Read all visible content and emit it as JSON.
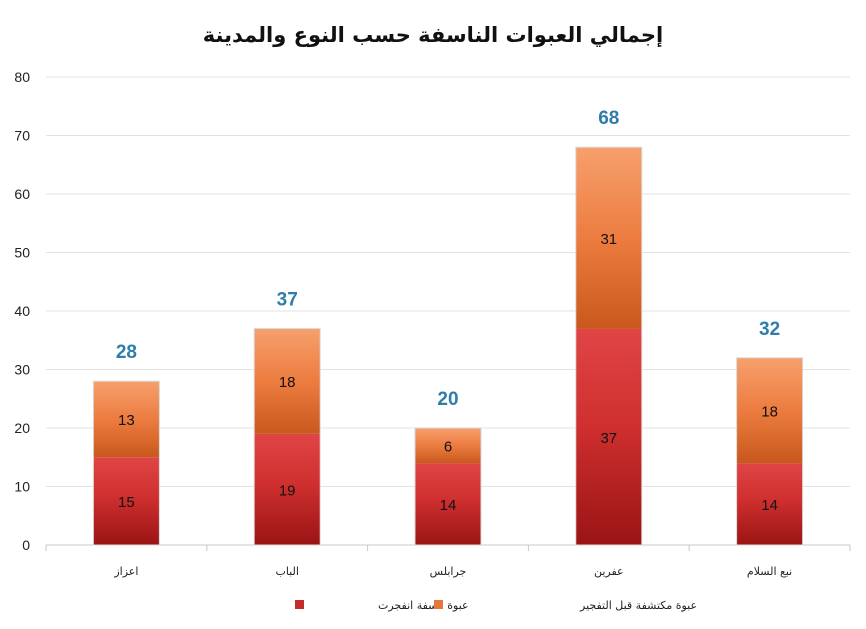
{
  "chart_data": {
    "type": "bar",
    "stacked": true,
    "title": "إجمالي العبوات الناسفة حسب النوع والمدينة",
    "categories": [
      "اعزاز",
      "الباب",
      "جرابلس",
      "عفرين",
      "نبع السلام"
    ],
    "series": [
      {
        "name": "عبوة ناسفة انفجرت",
        "values": [
          15,
          19,
          14,
          37,
          14
        ],
        "color": "#c62a2a"
      },
      {
        "name": "عبوة مكتشفة قبل التفجير",
        "values": [
          13,
          18,
          6,
          31,
          18
        ],
        "color": "#e8753e"
      }
    ],
    "totals": [
      28,
      37,
      20,
      68,
      32
    ],
    "ylim": [
      0,
      80
    ],
    "yticks": [
      0,
      10,
      20,
      30,
      40,
      50,
      60,
      70,
      80
    ],
    "grid": true,
    "legend": "bottom",
    "total_label_color": "#2f7eaa"
  }
}
